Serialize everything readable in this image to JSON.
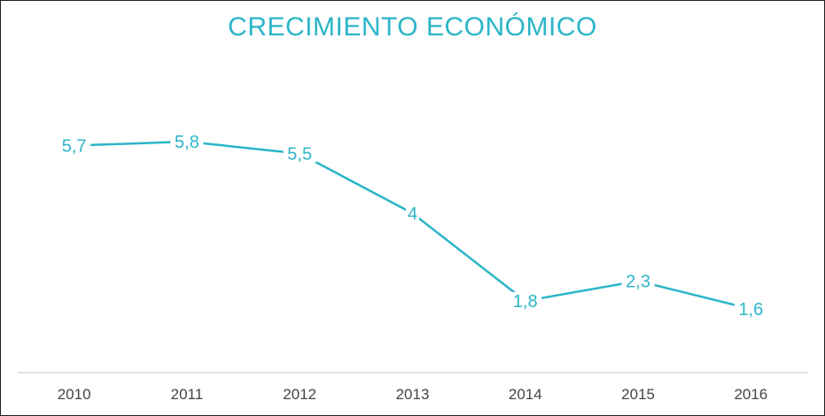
{
  "chart_data": {
    "type": "line",
    "title": "CRECIMIENTO ECONÓMICO",
    "xlabel": "",
    "ylabel": "",
    "categories": [
      "2010",
      "2011",
      "2012",
      "2013",
      "2014",
      "2015",
      "2016"
    ],
    "series": [
      {
        "values": [
          5.7,
          5.8,
          5.5,
          4,
          1.8,
          2.3,
          1.6
        ],
        "data_labels": [
          "5,7",
          "5,8",
          "5,5",
          "4",
          "1,8",
          "2,3",
          "1,6"
        ]
      }
    ],
    "ylim": [
      0,
      7.2
    ],
    "grid": false,
    "legend": "none",
    "colors": {
      "line": "#2bb5c8",
      "title": "#2bb5c8",
      "labels": "#2bb5c8",
      "axis": "#d9d9d9"
    }
  }
}
